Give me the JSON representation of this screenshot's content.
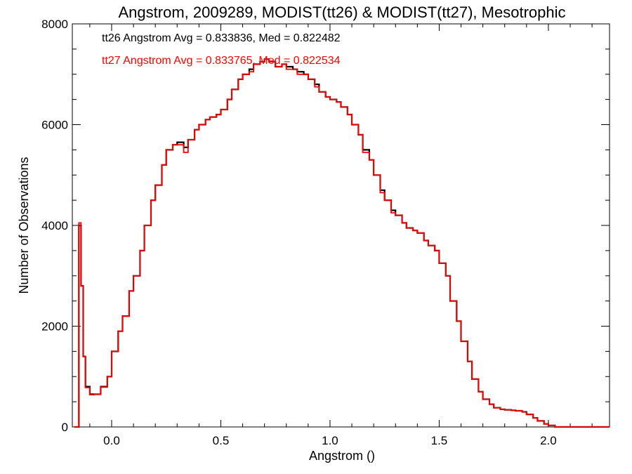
{
  "chart_data": {
    "type": "line",
    "title": "Angstrom, 2009289, MODIST(tt26) & MODIST(tt27), Mesotrophic",
    "xlabel": "Angstrom ()",
    "ylabel": "Number of Observations",
    "xlim": [
      -0.18,
      2.28
    ],
    "ylim": [
      0,
      8000
    ],
    "x_ticks": [
      0.0,
      0.5,
      1.0,
      1.5,
      2.0
    ],
    "x_tick_labels": [
      "0.0",
      "0.5",
      "1.0",
      "1.5",
      "2.0"
    ],
    "y_ticks": [
      0,
      2000,
      4000,
      6000,
      8000
    ],
    "y_tick_labels": [
      "0",
      "2000",
      "4000",
      "6000",
      "8000"
    ],
    "grid": false,
    "annotations": [
      {
        "text": "tt26 Angstrom Avg = 0.833836, Med = 0.822482",
        "color": "#000000"
      },
      {
        "text": "tt27 Angstrom Avg = 0.833765, Med = 0.822534",
        "color": "#ff0000"
      }
    ],
    "series": [
      {
        "color": "#000000",
        "x": [
          -0.17,
          -0.15,
          -0.14,
          -0.13,
          -0.12,
          -0.1,
          -0.08,
          -0.05,
          -0.02,
          0.0,
          0.03,
          0.05,
          0.08,
          0.1,
          0.13,
          0.15,
          0.18,
          0.2,
          0.23,
          0.25,
          0.28,
          0.3,
          0.33,
          0.35,
          0.38,
          0.4,
          0.43,
          0.45,
          0.48,
          0.5,
          0.53,
          0.55,
          0.58,
          0.6,
          0.63,
          0.65,
          0.68,
          0.7,
          0.72,
          0.75,
          0.78,
          0.8,
          0.83,
          0.85,
          0.88,
          0.9,
          0.93,
          0.95,
          0.98,
          1.0,
          1.03,
          1.05,
          1.08,
          1.1,
          1.13,
          1.15,
          1.18,
          1.2,
          1.23,
          1.25,
          1.28,
          1.3,
          1.33,
          1.35,
          1.38,
          1.4,
          1.43,
          1.45,
          1.48,
          1.5,
          1.53,
          1.55,
          1.58,
          1.6,
          1.63,
          1.65,
          1.68,
          1.7,
          1.73,
          1.75,
          1.78,
          1.8,
          1.83,
          1.85,
          1.88,
          1.9,
          1.93,
          1.95,
          1.98,
          2.0,
          2.03,
          2.05,
          2.08,
          2.1,
          2.13,
          2.15,
          2.18,
          2.2,
          2.23,
          2.25,
          2.28
        ],
        "y": [
          0,
          4000,
          2800,
          1400,
          800,
          650,
          650,
          800,
          1000,
          1500,
          1900,
          2200,
          2700,
          3000,
          3500,
          4000,
          4500,
          4800,
          5200,
          5500,
          5600,
          5650,
          5550,
          5700,
          5900,
          6000,
          6100,
          6150,
          6200,
          6300,
          6500,
          6700,
          6900,
          7000,
          7100,
          7200,
          7250,
          7300,
          7250,
          7150,
          7200,
          7150,
          7100,
          7050,
          7000,
          6900,
          6800,
          6650,
          6550,
          6500,
          6450,
          6350,
          6200,
          6000,
          5800,
          5500,
          5300,
          5000,
          4700,
          4500,
          4300,
          4200,
          4050,
          3950,
          3900,
          3850,
          3700,
          3600,
          3500,
          3250,
          3000,
          2500,
          2100,
          1700,
          1300,
          950,
          700,
          550,
          450,
          380,
          350,
          340,
          330,
          320,
          300,
          250,
          180,
          120,
          60,
          30,
          0,
          0,
          0,
          0,
          0,
          0,
          0,
          0,
          0,
          0,
          0
        ]
      },
      {
        "color": "#ff0000",
        "x": [
          -0.17,
          -0.15,
          -0.14,
          -0.13,
          -0.12,
          -0.1,
          -0.08,
          -0.05,
          -0.02,
          0.0,
          0.03,
          0.05,
          0.08,
          0.1,
          0.13,
          0.15,
          0.18,
          0.2,
          0.23,
          0.25,
          0.28,
          0.3,
          0.33,
          0.35,
          0.38,
          0.4,
          0.43,
          0.45,
          0.48,
          0.5,
          0.53,
          0.55,
          0.58,
          0.6,
          0.63,
          0.65,
          0.68,
          0.7,
          0.72,
          0.75,
          0.78,
          0.8,
          0.83,
          0.85,
          0.88,
          0.9,
          0.93,
          0.95,
          0.98,
          1.0,
          1.03,
          1.05,
          1.08,
          1.1,
          1.13,
          1.15,
          1.18,
          1.2,
          1.23,
          1.25,
          1.28,
          1.3,
          1.33,
          1.35,
          1.38,
          1.4,
          1.43,
          1.45,
          1.48,
          1.5,
          1.53,
          1.55,
          1.58,
          1.6,
          1.63,
          1.65,
          1.68,
          1.7,
          1.73,
          1.75,
          1.78,
          1.8,
          1.83,
          1.85,
          1.88,
          1.9,
          1.93,
          1.95,
          1.98,
          2.0,
          2.03,
          2.05,
          2.08,
          2.1,
          2.13,
          2.15,
          2.18,
          2.2,
          2.23,
          2.25,
          2.28
        ],
        "y": [
          0,
          4050,
          2800,
          1400,
          780,
          640,
          650,
          790,
          1000,
          1500,
          1900,
          2200,
          2700,
          3000,
          3500,
          4000,
          4500,
          4800,
          5200,
          5500,
          5600,
          5600,
          5450,
          5700,
          5900,
          6000,
          6100,
          6150,
          6200,
          6300,
          6500,
          6700,
          6900,
          7000,
          7050,
          7200,
          7250,
          7300,
          7250,
          7150,
          7200,
          7100,
          7100,
          7000,
          7000,
          6900,
          6750,
          6650,
          6550,
          6500,
          6450,
          6350,
          6200,
          6000,
          5800,
          5450,
          5300,
          5000,
          4650,
          4500,
          4250,
          4200,
          4050,
          3950,
          3900,
          3850,
          3700,
          3600,
          3500,
          3250,
          3000,
          2500,
          2100,
          1700,
          1300,
          950,
          700,
          550,
          450,
          380,
          350,
          340,
          330,
          320,
          300,
          250,
          180,
          120,
          60,
          30,
          0,
          0,
          0,
          0,
          0,
          0,
          0,
          0,
          0,
          0,
          0
        ]
      }
    ]
  }
}
